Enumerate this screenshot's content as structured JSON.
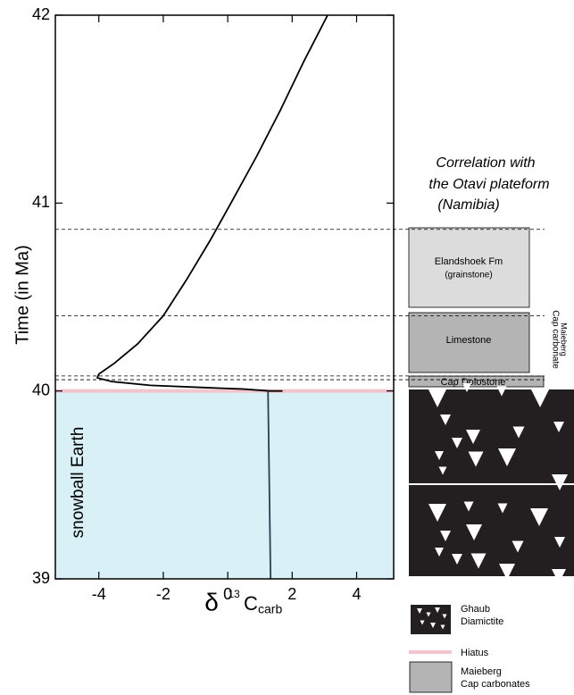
{
  "chart_data": {
    "type": "line",
    "x_label_symbol": "δ",
    "x_label_sup": "13",
    "x_label_main": "C",
    "x_label_sub": "carb",
    "y_label": "Time (in Ma)",
    "annotation": "snowball Earth",
    "xlim": [
      -5.35,
      5.15
    ],
    "xticks": [
      -4,
      -2,
      0,
      2,
      4
    ],
    "ylim": [
      39,
      42
    ],
    "yticks": [
      39,
      40,
      41,
      42
    ],
    "snowball_span": [
      39,
      40
    ],
    "snowball_color": "#d8f0f6",
    "hiatus_at": 40,
    "hiatus_color": "#f2c4cc",
    "dashed_levels": [
      40.86,
      40.4,
      40.08,
      40.06
    ],
    "series": [
      {
        "color": "#000000",
        "x": [
          3.1,
          2.35,
          1.65,
          0.9,
          0.1,
          -0.55,
          -1.25,
          -2.0,
          -2.8,
          -3.5,
          -4.0,
          -4.05,
          -3.6,
          -2.4,
          -1.0,
          0.5,
          1.3,
          1.7
        ],
        "values": [
          42,
          41.75,
          41.5,
          41.25,
          41.0,
          40.8,
          40.6,
          40.4,
          40.25,
          40.15,
          40.09,
          40.07,
          40.05,
          40.03,
          40.02,
          40.01,
          40.0,
          40.0
        ]
      },
      {
        "color": "#2c3e50",
        "x": [
          1.25,
          1.33
        ],
        "values": [
          40.0,
          39.0
        ]
      }
    ]
  },
  "correlation": {
    "title_lines": [
      "Correlation with",
      "the Otavi plateform",
      "(Namibia)"
    ],
    "elandshoek": "Elandshoek  Fm",
    "elandshoek_sub": "(grainstone)",
    "limestone": "Limestone",
    "cap_dolostone": "Cap Dolostone",
    "side_label_1": "Maieberg",
    "side_label_2": "Cap carbonate"
  },
  "legend": {
    "ghaub_1": "Ghaub",
    "ghaub_2": "Diamictite",
    "hiatus": "Hiatus",
    "maieberg_1": "Maieberg",
    "maieberg_2": "Cap carbonates"
  }
}
